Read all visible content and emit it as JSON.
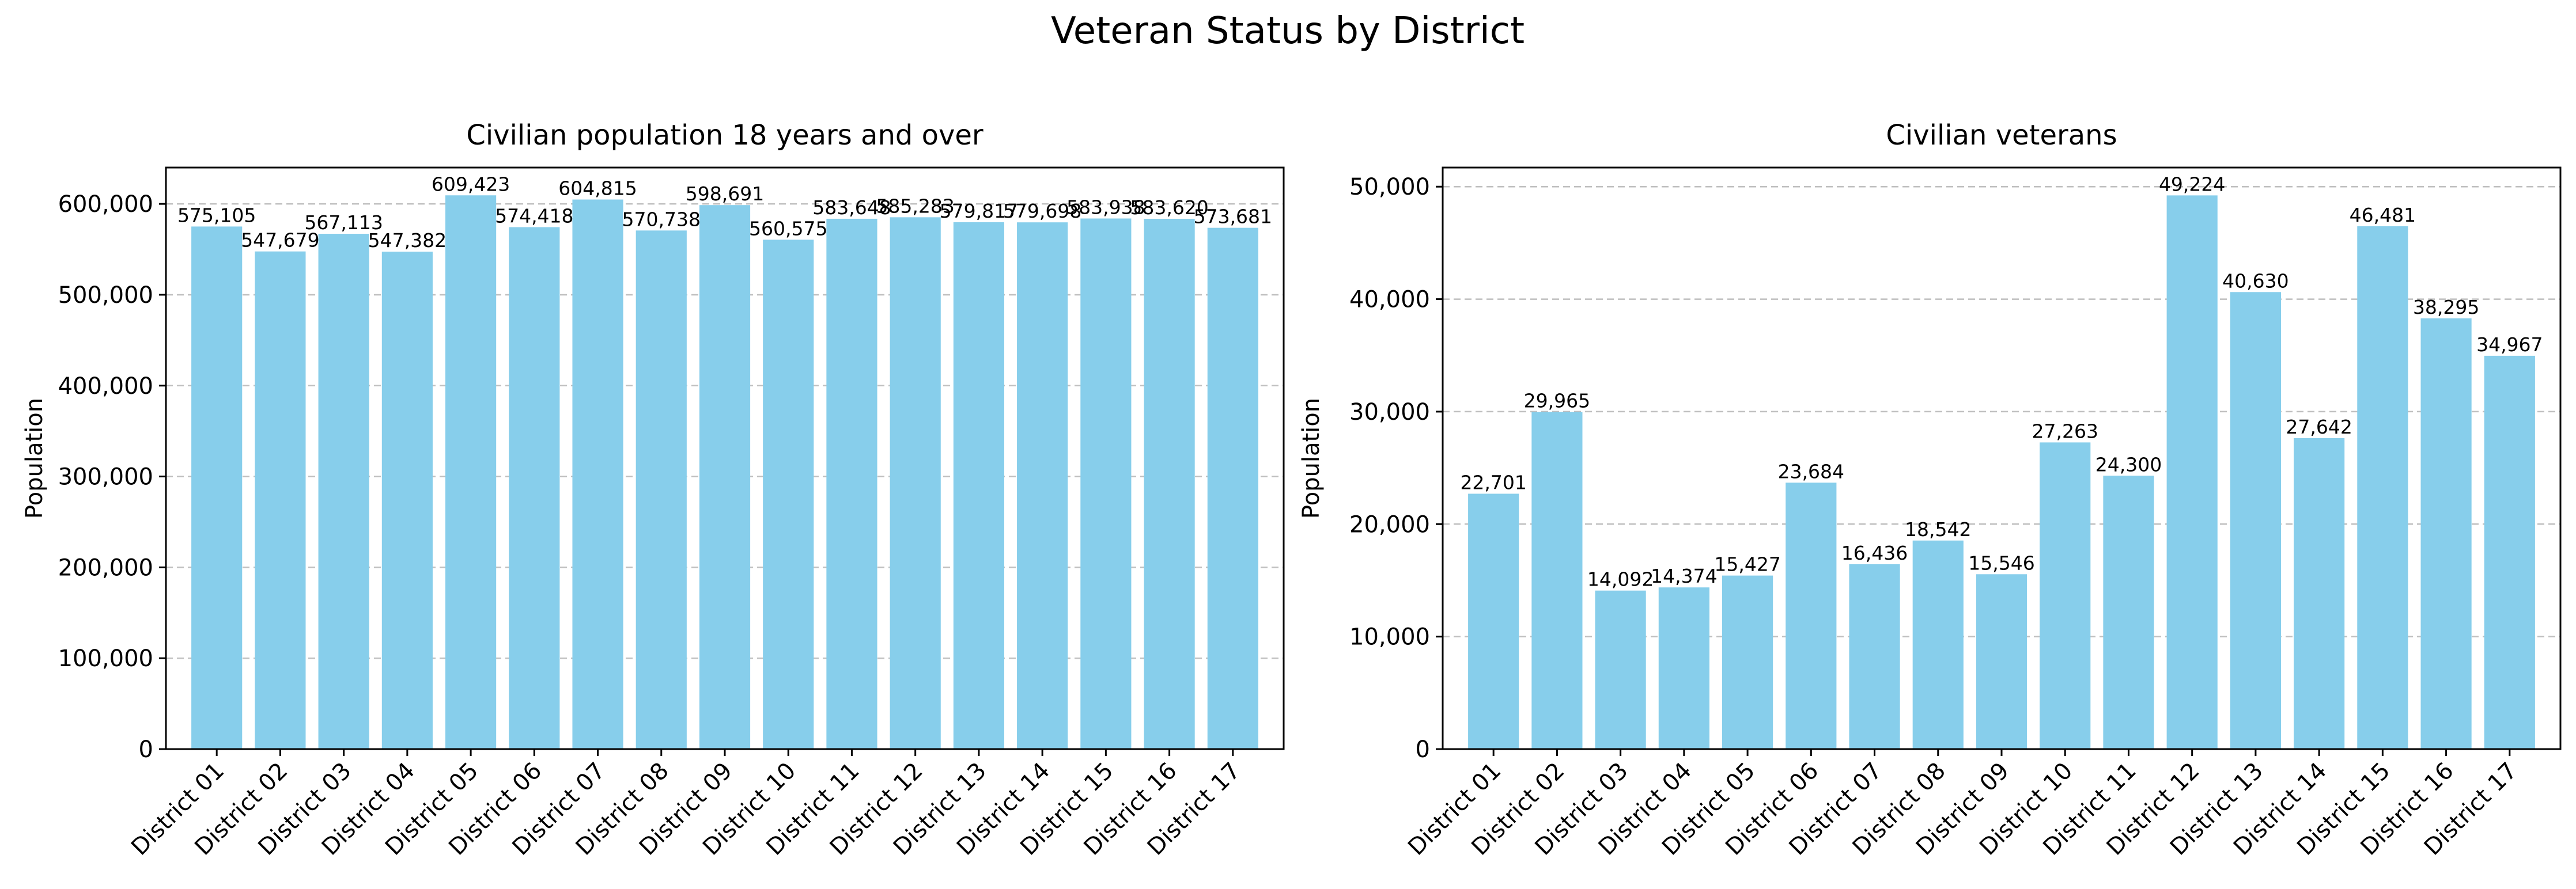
{
  "figure": {
    "title": "Veteran Status by District"
  },
  "chart_data": [
    {
      "type": "bar",
      "title": "Civilian population 18 years and over",
      "xlabel": "",
      "ylabel": "Population",
      "ylim": [
        0,
        640000
      ],
      "yticks": [
        0,
        100000,
        200000,
        300000,
        400000,
        500000,
        600000
      ],
      "ytick_labels": [
        "0",
        "100,000",
        "200,000",
        "300,000",
        "400,000",
        "500,000",
        "600,000"
      ],
      "grid": "y-dashed",
      "bar_color": "#87CEEB",
      "categories": [
        "District 01",
        "District 02",
        "District 03",
        "District 04",
        "District 05",
        "District 06",
        "District 07",
        "District 08",
        "District 09",
        "District 10",
        "District 11",
        "District 12",
        "District 13",
        "District 14",
        "District 15",
        "District 16",
        "District 17"
      ],
      "values": [
        575105,
        547679,
        567113,
        547382,
        609423,
        574418,
        604815,
        570738,
        598691,
        560575,
        583648,
        585283,
        579817,
        579698,
        583938,
        583620,
        573681
      ],
      "value_labels": [
        "575,105",
        "547,679",
        "567,113",
        "547,382",
        "609,423",
        "574,418",
        "604,815",
        "570,738",
        "598,691",
        "560,575",
        "583,648",
        "585,283",
        "579,817",
        "579,698",
        "583,938",
        "583,620",
        "573,681"
      ]
    },
    {
      "type": "bar",
      "title": "Civilian veterans",
      "xlabel": "",
      "ylabel": "Population",
      "ylim": [
        0,
        51700
      ],
      "yticks": [
        0,
        10000,
        20000,
        30000,
        40000,
        50000
      ],
      "ytick_labels": [
        "0",
        "10,000",
        "20,000",
        "30,000",
        "40,000",
        "50,000"
      ],
      "grid": "y-dashed",
      "bar_color": "#87CEEB",
      "categories": [
        "District 01",
        "District 02",
        "District 03",
        "District 04",
        "District 05",
        "District 06",
        "District 07",
        "District 08",
        "District 09",
        "District 10",
        "District 11",
        "District 12",
        "District 13",
        "District 14",
        "District 15",
        "District 16",
        "District 17"
      ],
      "values": [
        22701,
        29965,
        14092,
        14374,
        15427,
        23684,
        16436,
        18542,
        15546,
        27263,
        24300,
        49224,
        40630,
        27642,
        46481,
        38295,
        34967
      ],
      "value_labels": [
        "22,701",
        "29,965",
        "14,092",
        "14,374",
        "15,427",
        "23,684",
        "16,436",
        "18,542",
        "15,546",
        "27,263",
        "24,300",
        "49,224",
        "40,630",
        "27,642",
        "46,481",
        "38,295",
        "34,967"
      ]
    }
  ]
}
